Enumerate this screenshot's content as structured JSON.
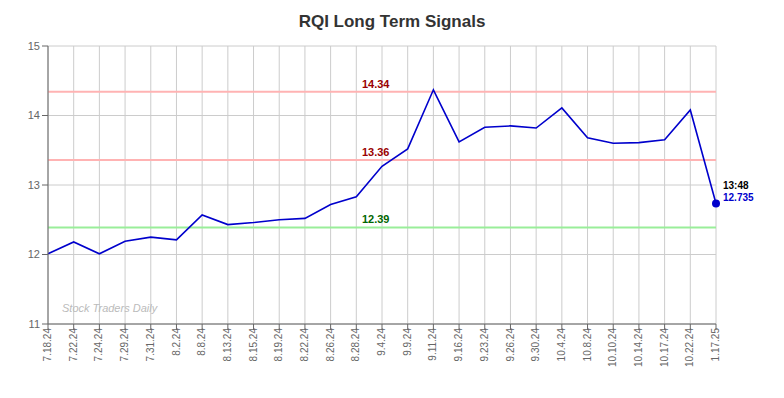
{
  "chart_data": {
    "type": "line",
    "title": "RQI Long Term Signals",
    "categories": [
      "7.18.24",
      "7.22.24",
      "7.24.24",
      "7.29.24",
      "7.31.24",
      "8.2.24",
      "8.8.24",
      "8.13.24",
      "8.15.24",
      "8.19.24",
      "8.22.24",
      "8.26.24",
      "8.28.24",
      "9.4.24",
      "9.9.24",
      "9.11.24",
      "9.16.24",
      "9.23.24",
      "9.26.24",
      "9.30.24",
      "10.4.24",
      "10.8.24",
      "10.10.24",
      "10.14.24",
      "10.17.24",
      "10.22.24",
      "1.17.25"
    ],
    "values": [
      12.01,
      12.18,
      12.01,
      12.19,
      12.25,
      12.21,
      12.57,
      12.43,
      12.46,
      12.5,
      12.52,
      12.72,
      12.83,
      13.27,
      13.52,
      14.37,
      13.62,
      13.83,
      13.85,
      13.82,
      14.11,
      13.68,
      13.6,
      13.61,
      13.65,
      14.08,
      12.735
    ],
    "color": "#0000cc",
    "ylim": [
      11,
      15
    ],
    "yticks": [
      11,
      12,
      13,
      14,
      15
    ],
    "grid": true,
    "reference_lines": [
      {
        "value": 14.34,
        "color": "#ffb3b3",
        "label": "14.34",
        "label_color": "#990000"
      },
      {
        "value": 13.36,
        "color": "#ffb3b3",
        "label": "13.36",
        "label_color": "#990000"
      },
      {
        "value": 12.39,
        "color": "#99ee99",
        "label": "12.39",
        "label_color": "#006600"
      }
    ],
    "last_point": {
      "time": "13:48",
      "label": "12.735",
      "color": "#0000cc"
    },
    "watermark": {
      "text": "Stock Traders Daily",
      "color": "#bbbbbb"
    }
  }
}
